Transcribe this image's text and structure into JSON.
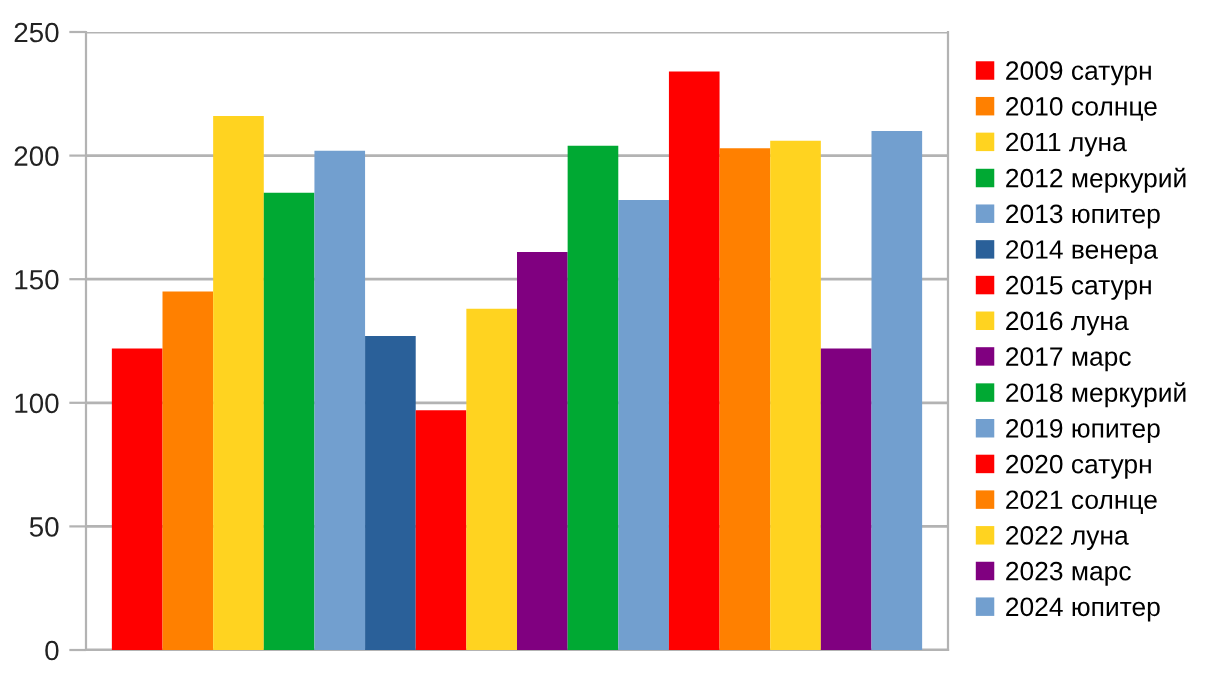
{
  "chart_data": {
    "type": "bar",
    "categories": [
      null
    ],
    "series": [
      {
        "name": "2009 сатурн",
        "color": "#ff0000",
        "values": [
          122
        ]
      },
      {
        "name": "2010 солнце",
        "color": "#ff8000",
        "values": [
          145
        ]
      },
      {
        "name": "2011 луна",
        "color": "#ffd320",
        "values": [
          216
        ]
      },
      {
        "name": "2012 меркурий",
        "color": "#00a933",
        "values": [
          185
        ]
      },
      {
        "name": "2013 юпитер",
        "color": "#729fcf",
        "values": [
          202
        ]
      },
      {
        "name": "2014 венера",
        "color": "#2a6099",
        "values": [
          127
        ]
      },
      {
        "name": "2015 сатурн",
        "color": "#ff0000",
        "values": [
          97
        ]
      },
      {
        "name": "2016 луна",
        "color": "#ffd320",
        "values": [
          138
        ]
      },
      {
        "name": "2017 марс",
        "color": "#800080",
        "values": [
          161
        ]
      },
      {
        "name": "2018 меркурий",
        "color": "#00a933",
        "values": [
          204
        ]
      },
      {
        "name": "2019 юпитер",
        "color": "#729fcf",
        "values": [
          182
        ]
      },
      {
        "name": "2020 сатурн",
        "color": "#ff0000",
        "values": [
          234
        ]
      },
      {
        "name": "2021 солнце",
        "color": "#ff8000",
        "values": [
          203
        ]
      },
      {
        "name": "2022 луна",
        "color": "#ffd320",
        "values": [
          206
        ]
      },
      {
        "name": "2023 марс",
        "color": "#800080",
        "values": [
          122
        ]
      },
      {
        "name": "2024 юпитер",
        "color": "#729fcf",
        "values": [
          210
        ]
      }
    ],
    "ylim": [
      0,
      250
    ],
    "yticks": [
      0,
      50,
      100,
      150,
      200,
      250
    ],
    "grid": "y",
    "legend": "right"
  }
}
